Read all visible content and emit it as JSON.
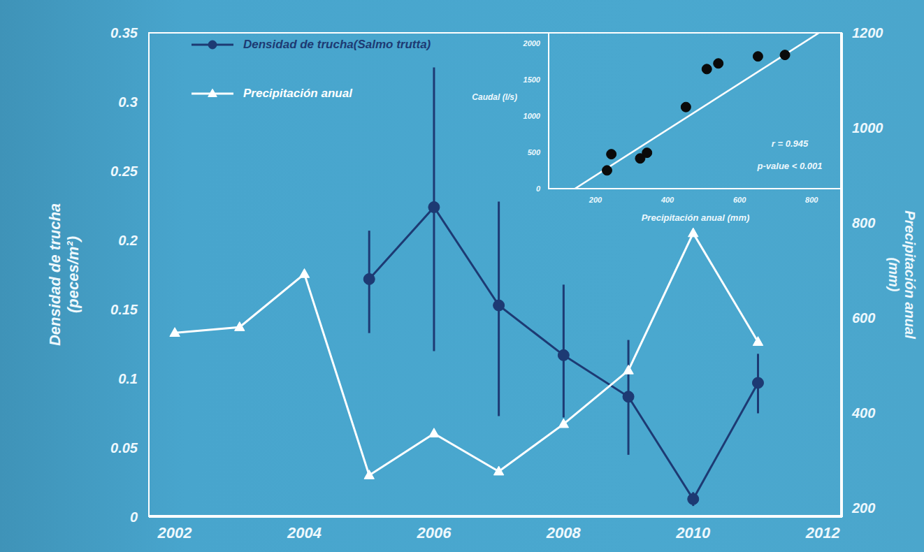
{
  "chart_data": [
    {
      "type": "line",
      "x": [
        2002,
        2003,
        2004,
        2005,
        2006,
        2007,
        2008,
        2009,
        2010,
        2011
      ],
      "xlim": [
        2001.6,
        2012.3
      ],
      "xticks": [
        2002,
        2004,
        2006,
        2008,
        2010,
        2012
      ],
      "ylabel": "Densidad de trucha (peces/m²)",
      "ylim": [
        0,
        0.35
      ],
      "yticks": [
        0,
        0.05,
        0.1,
        0.15,
        0.2,
        0.25,
        0.3,
        0.35
      ],
      "y2label": "Precipitación anual (mm)",
      "y2lim": [
        180,
        1200
      ],
      "y2ticks": [
        200,
        400,
        600,
        800,
        1000,
        1200
      ],
      "legend": "upper left",
      "series": [
        {
          "name": "Densidad de trucha(Salmo trutta)",
          "color": "#1d3a73",
          "marker": "circle",
          "values": [
            null,
            null,
            null,
            0.172,
            0.224,
            0.153,
            0.117,
            0.087,
            0.013,
            0.097
          ],
          "error_low": [
            null,
            null,
            null,
            0.133,
            0.12,
            0.073,
            0.072,
            0.045,
            0.008,
            0.075
          ],
          "error_high": [
            null,
            null,
            null,
            0.207,
            0.325,
            0.228,
            0.168,
            0.128,
            0.018,
            0.118
          ]
        },
        {
          "name": "Precipitación anual",
          "color": "#ffffff",
          "marker": "triangle",
          "axis": "y2",
          "values": [
            568,
            580,
            692,
            268,
            356,
            276,
            376,
            489,
            778,
            549
          ]
        }
      ]
    },
    {
      "type": "scatter",
      "xlabel": "Precipitación anual (mm)",
      "ylabel": "Caudal (l/s)",
      "x": [
        232,
        244,
        324,
        343,
        451,
        509,
        541,
        651,
        726
      ],
      "values": [
        252,
        476,
        417,
        495,
        1126,
        1650,
        1728,
        1825,
        1845
      ],
      "color": "#0a0a0a",
      "marker": "circle",
      "xlim": [
        70,
        885
      ],
      "xticks": [
        200,
        400,
        600,
        800
      ],
      "ylim": [
        0,
        2150
      ],
      "yticks": [
        0,
        500,
        1000,
        1500,
        2000
      ],
      "fit": {
        "x": [
          143,
          819
        ],
        "y": [
          0,
          2146
        ],
        "color": "#ffffff"
      },
      "annotations": [
        "r = 0.945",
        "p-value < 0.001"
      ]
    }
  ]
}
